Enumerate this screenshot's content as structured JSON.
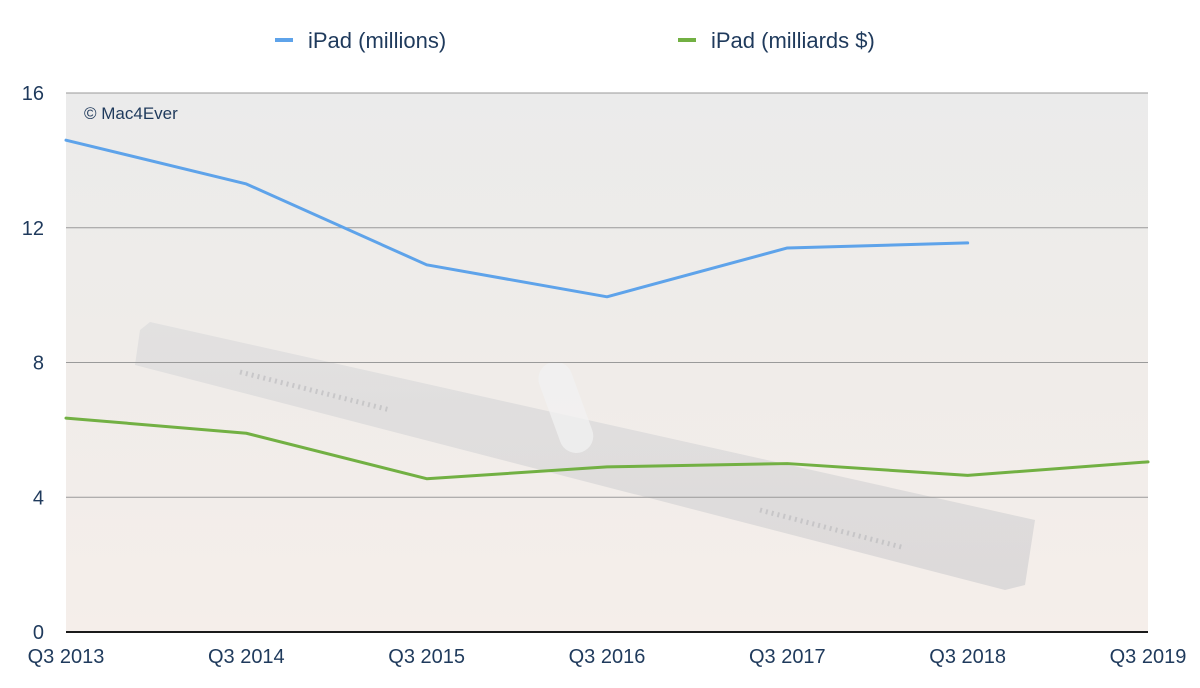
{
  "chart_data": {
    "type": "line",
    "categories": [
      "Q3 2013",
      "Q3 2014",
      "Q3 2015",
      "Q3 2016",
      "Q3 2017",
      "Q3 2018",
      "Q3 2019"
    ],
    "series": [
      {
        "name": "iPad (millions)",
        "color": "#5ea3ea",
        "values": [
          14.6,
          13.3,
          10.9,
          9.95,
          11.4,
          11.55,
          null
        ]
      },
      {
        "name": "iPad (milliards $)",
        "color": "#72b043",
        "values": [
          6.35,
          5.9,
          4.55,
          4.9,
          5.0,
          4.65,
          5.05
        ]
      }
    ],
    "ylim": [
      0,
      16
    ],
    "yticks": [
      0,
      4,
      8,
      12,
      16
    ],
    "grid": true,
    "legend_position": "top-center",
    "watermark": "© Mac4Ever"
  }
}
